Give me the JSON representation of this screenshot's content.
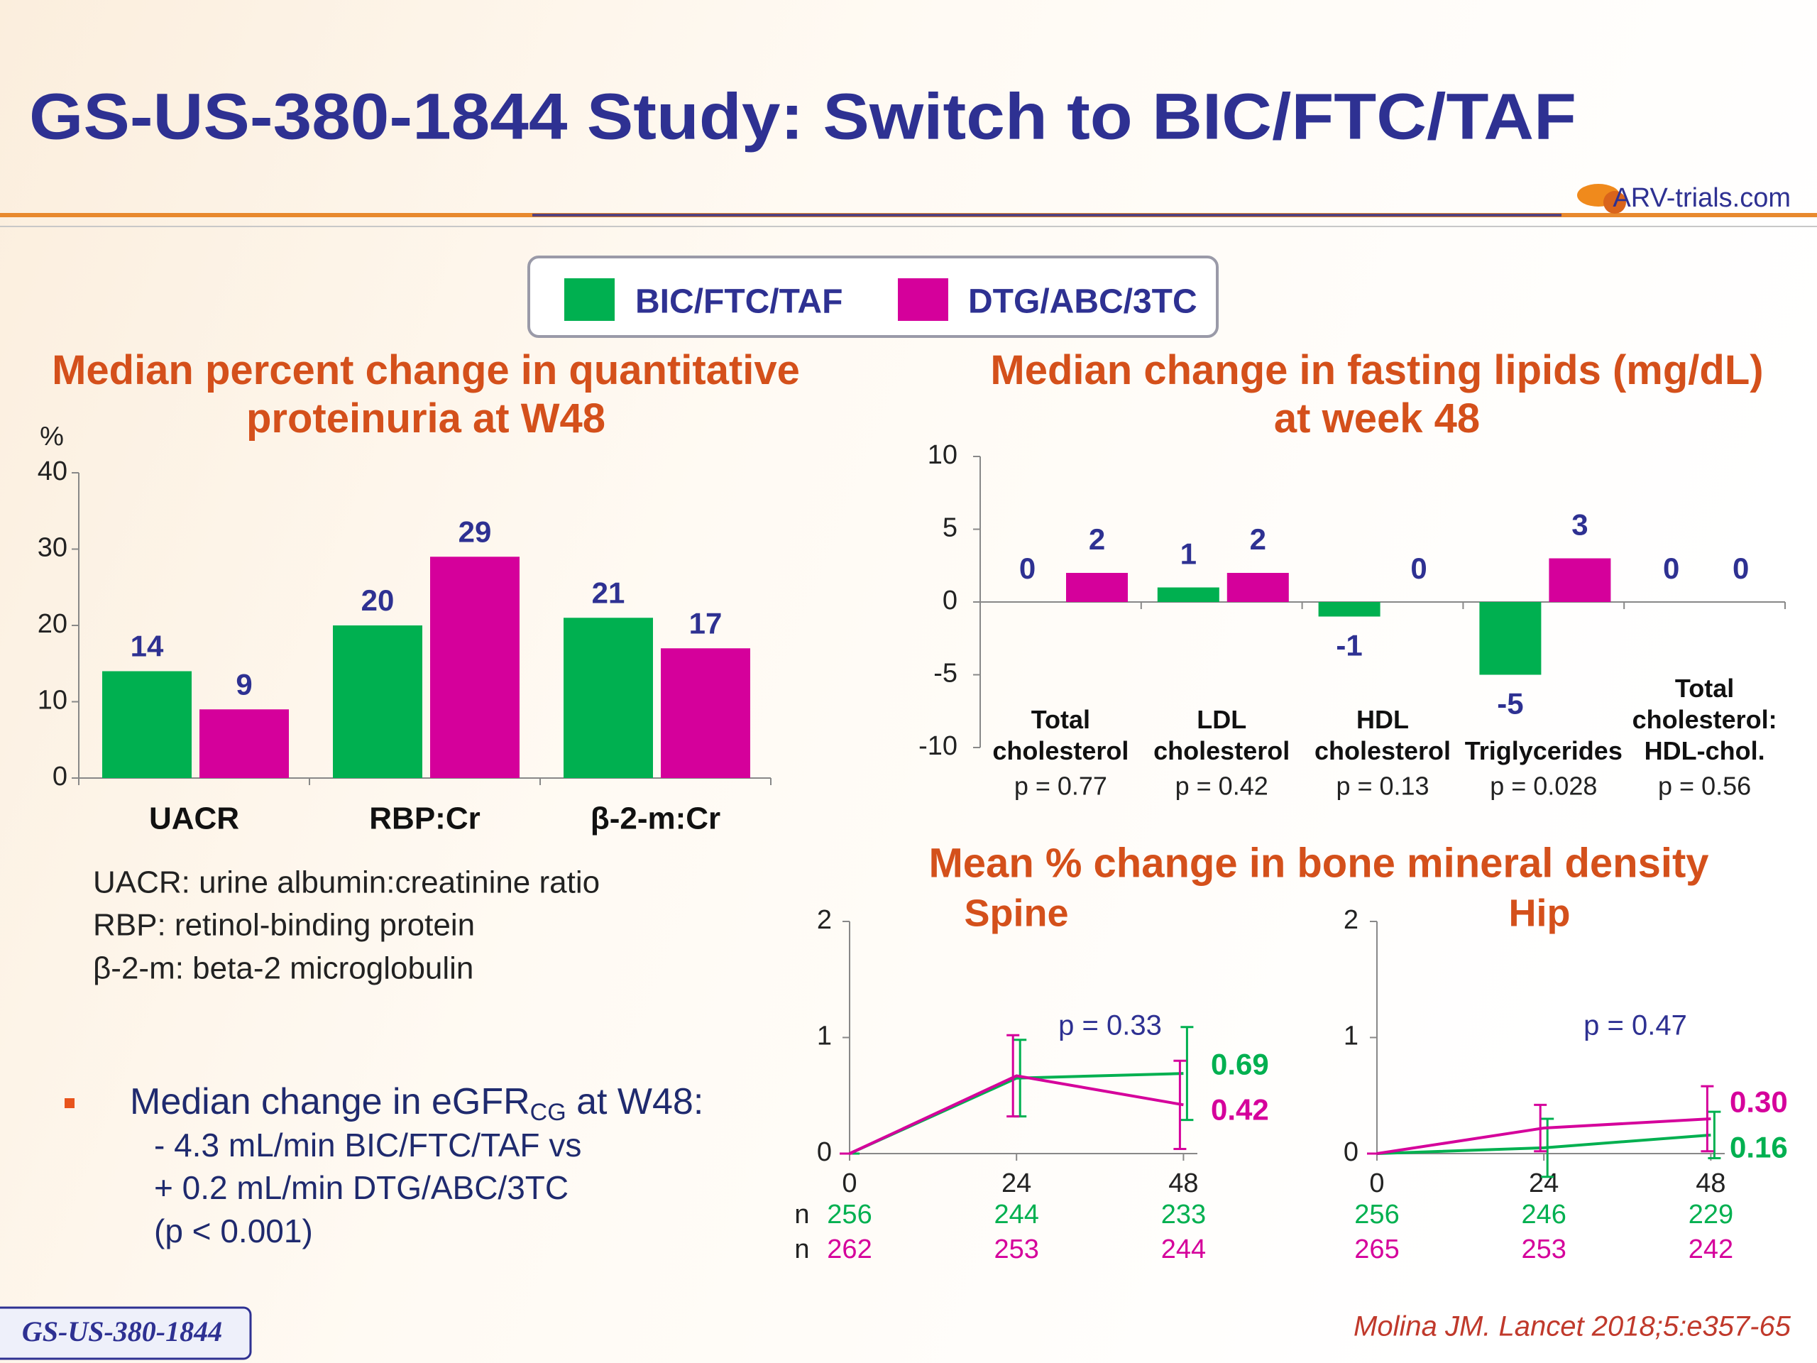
{
  "header": {
    "title": "GS-US-380-1844 Study: Switch to BIC/FTC/TAF",
    "logo": "ARV-trials.com"
  },
  "chart_data": [
    {
      "type": "bar",
      "title": "Median percent change in quantitative proteinuria at W48",
      "y_label": "%",
      "categories": [
        "UACR",
        "RBP:Cr",
        "β-2-m:Cr"
      ],
      "series": [
        {
          "name": "BIC/FTC/TAF",
          "color": "#00b050",
          "values": [
            14,
            20,
            21
          ]
        },
        {
          "name": "DTG/ABC/3TC",
          "color": "#d5009b",
          "values": [
            9,
            29,
            17
          ]
        }
      ],
      "ylim": [
        0,
        40
      ],
      "yticks": [
        0,
        10,
        20,
        30,
        40
      ]
    },
    {
      "type": "bar",
      "title": "Median change in fasting lipids (mg/dL) at week 48",
      "categories": [
        "Total cholesterol",
        "LDL cholesterol",
        "HDL cholesterol",
        "Triglycerides",
        "Total cholesterol: HDL-chol."
      ],
      "p_values": [
        "p = 0.77",
        "p = 0.42",
        "p = 0.13",
        "p = 0.028",
        "p = 0.56"
      ],
      "series": [
        {
          "color": "#00b050",
          "values": [
            0,
            1,
            -1,
            -5,
            0
          ]
        },
        {
          "color": "#d5009b",
          "values": [
            2,
            2,
            0,
            3,
            0
          ]
        }
      ],
      "ylim": [
        -10,
        10
      ],
      "yticks": [
        -10,
        -5,
        0,
        5,
        10
      ]
    },
    {
      "type": "line",
      "title": "Spine",
      "p_value": "p = 0.33",
      "n_label": "n",
      "x": [
        0,
        24,
        48
      ],
      "xlim": [
        0,
        50
      ],
      "xticks": [
        0,
        24,
        48
      ],
      "ylim": [
        0,
        2
      ],
      "yticks": [
        0,
        1,
        2
      ],
      "series": [
        {
          "color": "#00b050",
          "values": [
            0,
            0.65,
            0.69
          ],
          "errors": [
            0,
            0.33,
            0.4
          ],
          "n": [
            256,
            244,
            233
          ]
        },
        {
          "color": "#d5009b",
          "values": [
            0,
            0.67,
            0.42
          ],
          "errors": [
            0,
            0.35,
            0.38
          ],
          "n": [
            262,
            253,
            244
          ]
        }
      ]
    },
    {
      "type": "line",
      "title": "Hip",
      "p_value": "p = 0.47",
      "x": [
        0,
        24,
        48
      ],
      "xlim": [
        0,
        50
      ],
      "xticks": [
        0,
        24,
        48
      ],
      "ylim": [
        0,
        2
      ],
      "yticks": [
        0,
        1,
        2
      ],
      "series": [
        {
          "color": "#00b050",
          "values": [
            0,
            0.05,
            0.16
          ],
          "errors": [
            0,
            0.25,
            0.2
          ],
          "n": [
            256,
            246,
            229
          ]
        },
        {
          "color": "#d5009b",
          "values": [
            0,
            0.22,
            0.3
          ],
          "value_labels": [
            null,
            null,
            "0.30"
          ],
          "errors": [
            0,
            0.2,
            0.28
          ],
          "n": [
            265,
            253,
            242
          ]
        }
      ]
    }
  ],
  "bmd_title": "Mean % change in bone mineral density",
  "definitions": [
    "UACR: urine albumin:creatinine ratio",
    "RBP: retinol-binding protein",
    "β-2-m: beta-2 microglobulin"
  ],
  "bullet": {
    "text": [
      "Median change in eGFR",
      "CG",
      " at W48:"
    ],
    "lines": [
      "- 4.3 mL/min BIC/FTC/TAF vs",
      "+ 0.2 mL/min DTG/ABC/3TC",
      "(p < 0.001)"
    ]
  },
  "footer": {
    "study": "GS-US-380-1844",
    "citation": "Molina JM. Lancet 2018;5:e357-65"
  }
}
